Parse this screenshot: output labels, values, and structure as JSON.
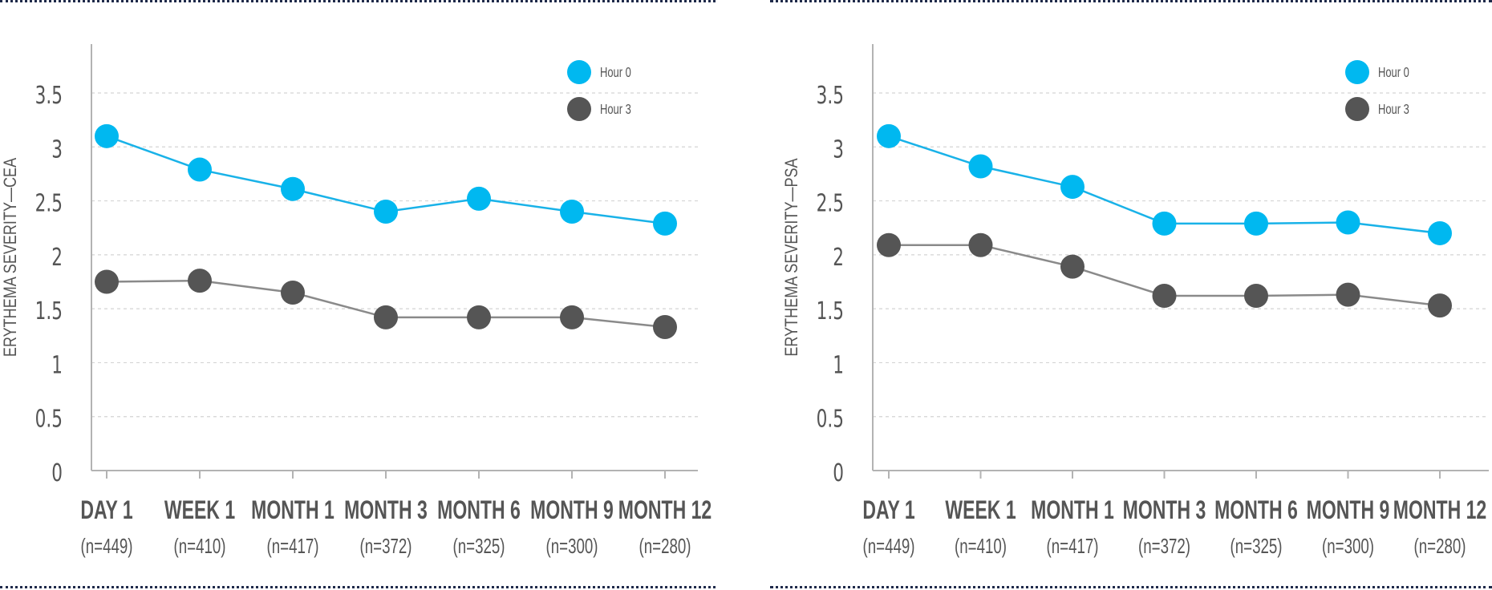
{
  "colors": {
    "hour0": "#00b8f0",
    "hour3": "#555555",
    "line_hour0": "#19b2e8",
    "line_hour3": "#8a8a8a",
    "grid": "#d4d4d4",
    "axis": "#b3b3b3",
    "text": "#555555",
    "rule": "#1f2a4a"
  },
  "chart_data": [
    {
      "type": "line",
      "ylabel": "ERYTHEMA SEVERITY—CEA",
      "xlabel": "",
      "ylim": [
        0,
        3.8
      ],
      "yticks": [
        0,
        0.5,
        1,
        1.5,
        2,
        2.5,
        3,
        3.5
      ],
      "ytick_labels": [
        "0",
        "0.5",
        "1",
        "1.5",
        "2",
        "2.5",
        "3",
        "3.5"
      ],
      "grid": true,
      "legend_position": "top-right",
      "categories": [
        "DAY 1",
        "WEEK 1",
        "MONTH 1",
        "MONTH 3",
        "MONTH 6",
        "MONTH 9",
        "MONTH 12"
      ],
      "category_n": [
        "(n=449)",
        "(n=410)",
        "(n=417)",
        "(n=372)",
        "(n=325)",
        "(n=300)",
        "(n=280)"
      ],
      "series": [
        {
          "name": "Hour 0",
          "values": [
            3.1,
            2.79,
            2.61,
            2.4,
            2.52,
            2.4,
            2.29
          ]
        },
        {
          "name": "Hour 3",
          "values": [
            1.75,
            1.76,
            1.65,
            1.42,
            1.42,
            1.42,
            1.33
          ]
        }
      ]
    },
    {
      "type": "line",
      "ylabel": "ERYTHEMA SEVERITY—PSA",
      "xlabel": "",
      "ylim": [
        0,
        3.8
      ],
      "yticks": [
        0,
        0.5,
        1,
        1.5,
        2,
        2.5,
        3,
        3.5
      ],
      "ytick_labels": [
        "0",
        "0.5",
        "1",
        "1.5",
        "2",
        "2.5",
        "3",
        "3.5"
      ],
      "grid": true,
      "legend_position": "top-right",
      "categories": [
        "DAY 1",
        "WEEK 1",
        "MONTH 1",
        "MONTH 3",
        "MONTH 6",
        "MONTH 9",
        "MONTH 12"
      ],
      "category_n": [
        "(n=449)",
        "(n=410)",
        "(n=417)",
        "(n=372)",
        "(n=325)",
        "(n=300)",
        "(n=280)"
      ],
      "series": [
        {
          "name": "Hour 0",
          "values": [
            3.1,
            2.82,
            2.63,
            2.29,
            2.29,
            2.3,
            2.2
          ]
        },
        {
          "name": "Hour 3",
          "values": [
            2.09,
            2.09,
            1.89,
            1.62,
            1.62,
            1.63,
            1.53
          ]
        }
      ]
    }
  ]
}
